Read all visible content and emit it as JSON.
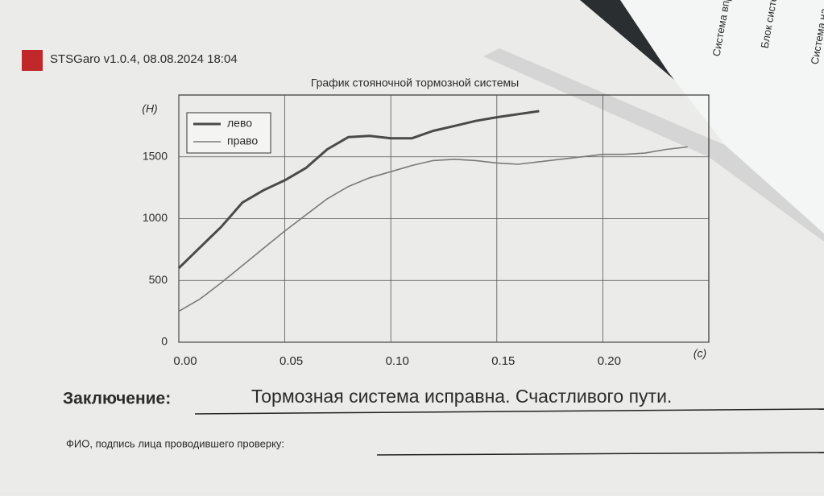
{
  "header": {
    "title": "STSGaro v1.0.4, 08.08.2024 18:04"
  },
  "chart_data": {
    "type": "line",
    "title": "График стояночной тормозной системы",
    "y_label": "(Н)",
    "x_label": "(c)",
    "x": [
      0,
      0.01,
      0.02,
      0.03,
      0.04,
      0.05,
      0.06,
      0.07,
      0.08,
      0.09,
      0.1,
      0.11,
      0.12,
      0.13,
      0.14,
      0.15,
      0.16,
      0.17,
      0.18,
      0.19,
      0.2,
      0.21,
      0.22,
      0.23,
      0.24
    ],
    "series": [
      {
        "name": "лево",
        "color": "#4a4a4a",
        "values": [
          600,
          767,
          933,
          1130,
          1230,
          1310,
          1410,
          1560,
          1660,
          1670,
          1650,
          1650,
          1710,
          1750,
          1790,
          1820,
          1845,
          1870,
          null,
          null,
          null,
          null,
          null,
          null,
          null
        ]
      },
      {
        "name": "право",
        "color": "#7a7a7a",
        "values": [
          250,
          350,
          480,
          620,
          760,
          900,
          1030,
          1160,
          1260,
          1330,
          1380,
          1430,
          1470,
          1480,
          1470,
          1450,
          1440,
          1460,
          1480,
          1500,
          1520,
          1520,
          1530,
          1560,
          1580
        ]
      }
    ],
    "xlim": [
      0,
      0.25
    ],
    "ylim": [
      0,
      2000
    ],
    "xticks": [
      {
        "value": 0,
        "label": "0.00"
      },
      0.05,
      {
        "value": 0.1,
        "label": "0.10"
      },
      0.15,
      {
        "value": 0.2,
        "label": "0.20"
      }
    ],
    "yticks": [
      0,
      500,
      1000,
      1500
    ],
    "grid": true,
    "legend": "upper left"
  },
  "conclusion": {
    "label": "Заключение:",
    "text": "Тормозная система исправна. Счастливого пути."
  },
  "signature": {
    "label": "ФИО, подпись лица проводившего проверку:"
  },
  "side_tabs": [
    "Система впрыска",
    "Блок системы эк",
    "Система на"
  ]
}
